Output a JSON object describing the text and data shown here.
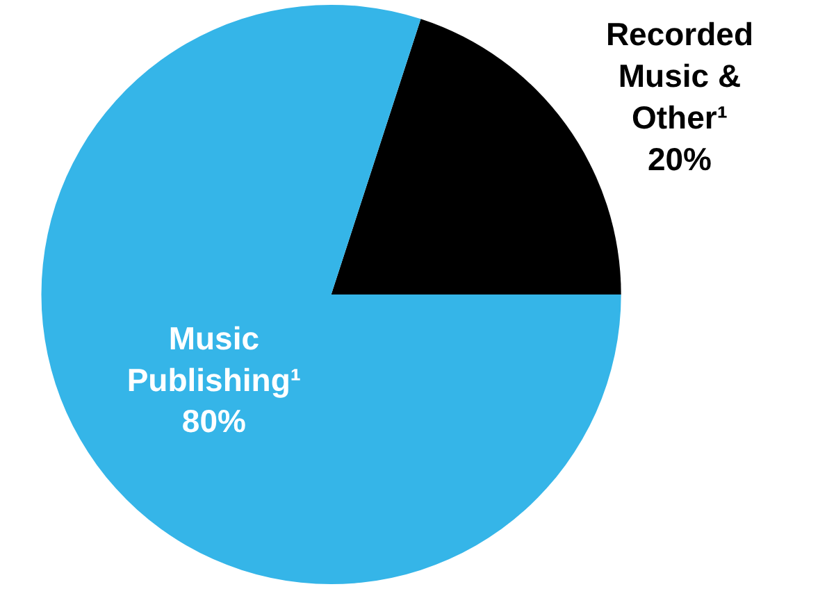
{
  "chart_data": {
    "type": "pie",
    "categories": [
      "Recorded Music & Other¹",
      "Music Publishing¹"
    ],
    "values": [
      20,
      80
    ],
    "colors": [
      "#000000",
      "#35b5e8"
    ],
    "value_labels": [
      "20%",
      "80%"
    ],
    "legend": false
  }
}
